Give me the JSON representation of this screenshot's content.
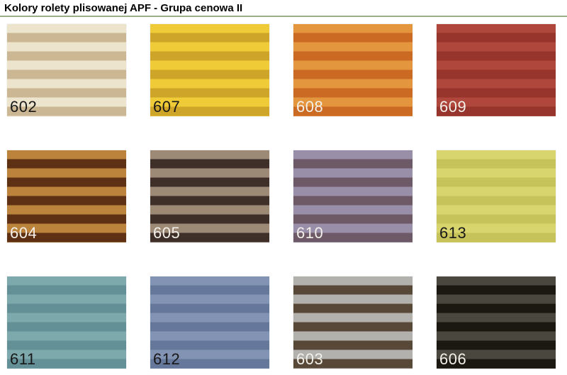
{
  "page": {
    "title": "Kolory rolety plisowanej APF - Grupa cenowa II"
  },
  "colors": {
    "background": "#ffffff",
    "title_text": "#000000",
    "divider": "#9cae86",
    "label_dark": "#181818",
    "label_light": "#f3f0ea"
  },
  "swatches": [
    {
      "code": "602",
      "stripe_light": "#ece4cc",
      "stripe_dark": "#cbb794",
      "label_style": "dark"
    },
    {
      "code": "607",
      "stripe_light": "#eecb37",
      "stripe_dark": "#cfa529",
      "label_style": "dark"
    },
    {
      "code": "608",
      "stripe_light": "#e4963f",
      "stripe_dark": "#cb6a22",
      "label_style": "light"
    },
    {
      "code": "609",
      "stripe_light": "#b0473c",
      "stripe_dark": "#97342b",
      "label_style": "light"
    },
    {
      "code": "604",
      "stripe_light": "#bb833c",
      "stripe_dark": "#5e3014",
      "label_style": "light"
    },
    {
      "code": "605",
      "stripe_light": "#9c8976",
      "stripe_dark": "#3f2f29",
      "label_style": "light"
    },
    {
      "code": "610",
      "stripe_light": "#998fa9",
      "stripe_dark": "#6d5a66",
      "label_style": "light"
    },
    {
      "code": "613",
      "stripe_light": "#d8d56e",
      "stripe_dark": "#c6c35b",
      "label_style": "dark"
    },
    {
      "code": "611",
      "stripe_light": "#7ea9ac",
      "stripe_dark": "#639097",
      "label_style": "dark"
    },
    {
      "code": "612",
      "stripe_light": "#8393b4",
      "stripe_dark": "#66779c",
      "label_style": "dark"
    },
    {
      "code": "603",
      "stripe_light": "#b2b1ad",
      "stripe_dark": "#584838",
      "label_style": "light"
    },
    {
      "code": "606",
      "stripe_light": "#4a473e",
      "stripe_dark": "#1b1812",
      "label_style": "light"
    }
  ]
}
